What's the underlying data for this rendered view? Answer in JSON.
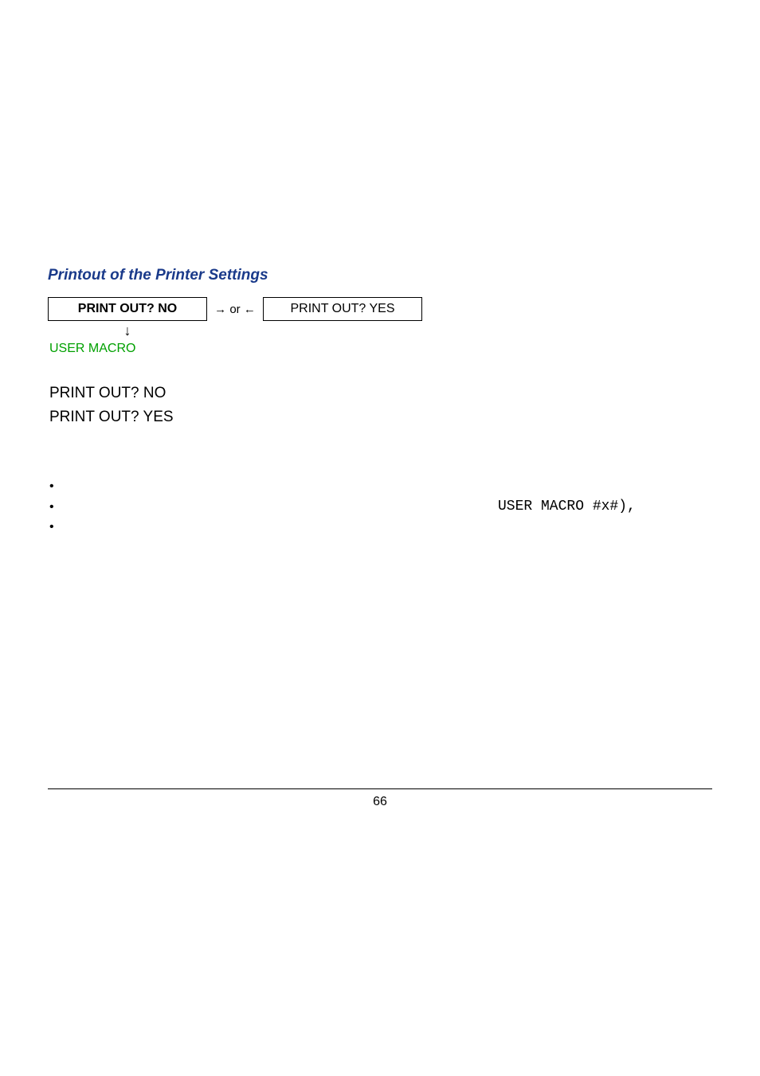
{
  "section": {
    "title": "Printout of the Printer Settings"
  },
  "diagram": {
    "left_box": "PRINT OUT? NO",
    "connector": "→ or ←",
    "right_box": "PRINT OUT? YES",
    "down_arrow": "↓",
    "next_link": "USER MACRO"
  },
  "options": {
    "line1": "PRINT OUT? NO",
    "line2": "PRINT OUT? YES"
  },
  "bullets": {
    "dot": "•",
    "mono_text": "USER MACRO #x#),"
  },
  "footer": {
    "page_number": "66"
  }
}
